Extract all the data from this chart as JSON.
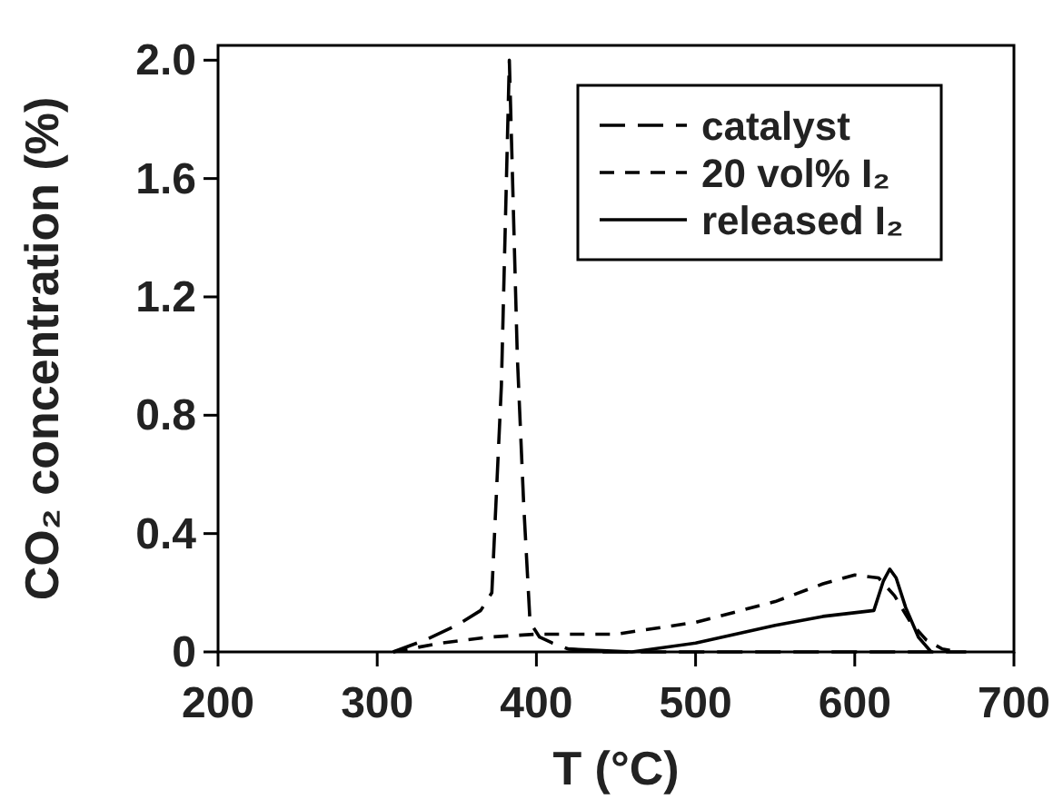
{
  "chart_data": {
    "type": "line",
    "xlabel": "T (°C)",
    "ylabel": "CO₂ concentration (%)",
    "xlim": [
      200,
      700
    ],
    "xticks": [
      200,
      300,
      400,
      500,
      600,
      700
    ],
    "ylim": [
      0,
      2.05
    ],
    "yticks": [
      0,
      0.4,
      0.8,
      1.2,
      1.6,
      {
        "value": 2,
        "label": "2.0"
      }
    ],
    "legend": "top right",
    "grid": false,
    "series": [
      {
        "name": "catalyst",
        "color": "#000000",
        "line_style": "dashed",
        "x": [
          310,
          330,
          350,
          365,
          372,
          378,
          383,
          388,
          392,
          396,
          402,
          410,
          420,
          440,
          480,
          520,
          560,
          600,
          640,
          660,
          670
        ],
        "values": [
          0,
          0.04,
          0.09,
          0.14,
          0.2,
          0.9,
          2.0,
          1.0,
          0.5,
          0.1,
          0.05,
          0.03,
          0.01,
          0,
          0,
          0,
          0,
          0,
          0,
          0,
          0
        ]
      },
      {
        "name": "20 vol% I₂",
        "color": "#000000",
        "line_style": "dashed",
        "x": [
          310,
          340,
          370,
          400,
          450,
          500,
          550,
          580,
          600,
          615,
          625,
          635,
          645,
          655,
          665
        ],
        "values": [
          0,
          0.03,
          0.05,
          0.06,
          0.06,
          0.1,
          0.17,
          0.23,
          0.26,
          0.25,
          0.19,
          0.1,
          0.04,
          0.01,
          0
        ]
      },
      {
        "name": "released I₂",
        "color": "#000000",
        "line_style": "solid",
        "x": [
          420,
          460,
          500,
          550,
          580,
          612,
          618,
          622,
          626,
          632,
          640,
          648
        ],
        "values": [
          0.01,
          0,
          0.03,
          0.09,
          0.12,
          0.14,
          0.24,
          0.28,
          0.25,
          0.15,
          0.05,
          0
        ]
      }
    ]
  }
}
